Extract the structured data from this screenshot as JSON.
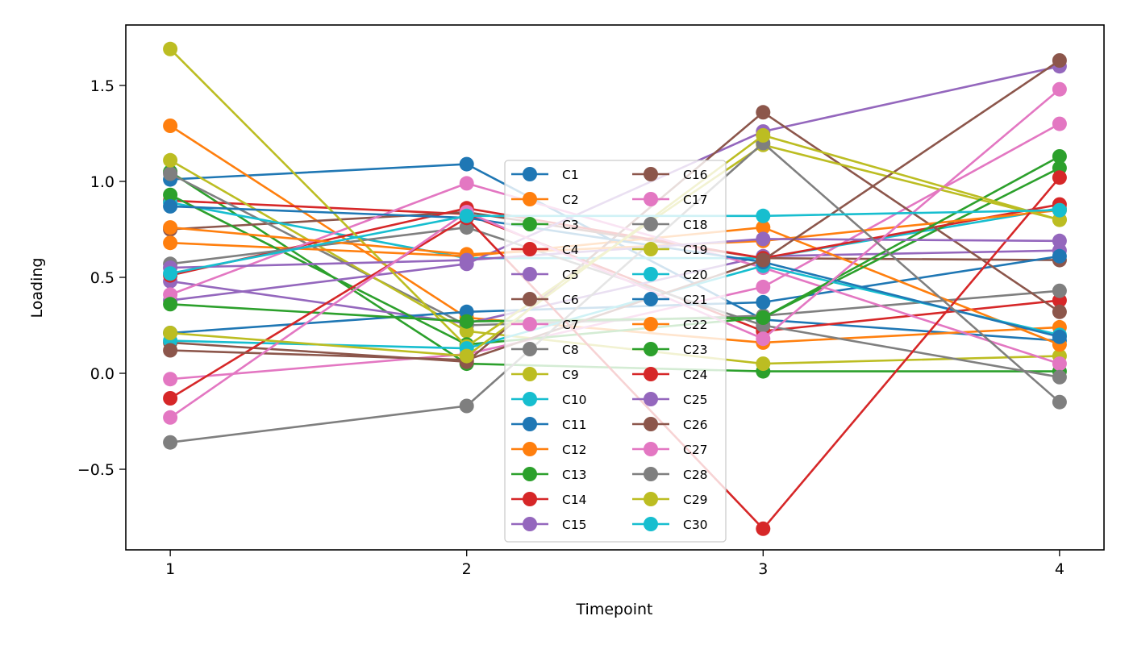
{
  "chart_data": {
    "type": "line",
    "title": "",
    "xlabel": "Timepoint",
    "ylabel": "Loading",
    "x": [
      1,
      2,
      3,
      4
    ],
    "xlim": [
      0.85,
      4.15
    ],
    "ylim": [
      -0.92,
      1.815
    ],
    "xticks": [
      "1",
      "2",
      "3",
      "4"
    ],
    "yticks": [
      {
        "value": -0.5,
        "label": "−0.5"
      },
      {
        "value": 0.0,
        "label": "0.0"
      },
      {
        "value": 0.5,
        "label": "0.5"
      },
      {
        "value": 1.0,
        "label": "1.0"
      },
      {
        "value": 1.5,
        "label": "1.5"
      }
    ],
    "grid": false,
    "legend": {
      "location": "center",
      "columns": 2
    },
    "series": [
      {
        "name": "C1",
        "color": "#1f77b4",
        "values": [
          1.01,
          1.09,
          0.28,
          0.17
        ]
      },
      {
        "name": "C2",
        "color": "#ff7f0e",
        "values": [
          1.29,
          0.29,
          0.16,
          0.24
        ]
      },
      {
        "name": "C3",
        "color": "#2ca02c",
        "values": [
          1.05,
          0.05,
          0.01,
          0.01
        ]
      },
      {
        "name": "C4",
        "color": "#d62728",
        "values": [
          0.9,
          0.83,
          0.22,
          0.38
        ]
      },
      {
        "name": "C5",
        "color": "#9467bd",
        "values": [
          0.48,
          0.26,
          0.61,
          0.64
        ]
      },
      {
        "name": "C6",
        "color": "#8c564b",
        "values": [
          0.75,
          0.84,
          0.6,
          0.59
        ]
      },
      {
        "name": "C7",
        "color": "#e377c2",
        "values": [
          -0.03,
          0.1,
          0.45,
          1.3
        ]
      },
      {
        "name": "C8",
        "color": "#7f7f7f",
        "values": [
          1.04,
          0.25,
          0.3,
          0.43
        ]
      },
      {
        "name": "C9",
        "color": "#bcbd22",
        "values": [
          1.11,
          0.22,
          0.05,
          0.09
        ]
      },
      {
        "name": "C10",
        "color": "#17becf",
        "values": [
          0.89,
          0.6,
          0.6,
          0.86
        ]
      },
      {
        "name": "C11",
        "color": "#1f77b4",
        "values": [
          0.21,
          0.32,
          0.37,
          0.61
        ]
      },
      {
        "name": "C12",
        "color": "#ff7f0e",
        "values": [
          0.68,
          0.61,
          0.76,
          0.15
        ]
      },
      {
        "name": "C13",
        "color": "#2ca02c",
        "values": [
          0.93,
          0.15,
          0.29,
          1.07
        ]
      },
      {
        "name": "C14",
        "color": "#d62728",
        "values": [
          0.51,
          0.86,
          0.6,
          0.88
        ]
      },
      {
        "name": "C15",
        "color": "#9467bd",
        "values": [
          0.38,
          0.57,
          1.26,
          1.6
        ]
      },
      {
        "name": "C16",
        "color": "#8c564b",
        "values": [
          0.16,
          0.06,
          1.36,
          0.32
        ]
      },
      {
        "name": "C17",
        "color": "#e377c2",
        "values": [
          0.41,
          0.99,
          0.55,
          0.05
        ]
      },
      {
        "name": "C18",
        "color": "#7f7f7f",
        "values": [
          0.57,
          0.76,
          0.25,
          -0.02
        ]
      },
      {
        "name": "C19",
        "color": "#bcbd22",
        "values": [
          1.69,
          0.14,
          1.19,
          0.8
        ]
      },
      {
        "name": "C20",
        "color": "#17becf",
        "values": [
          0.17,
          0.13,
          0.56,
          0.2
        ]
      },
      {
        "name": "C21",
        "color": "#1f77b4",
        "values": [
          0.87,
          0.81,
          0.58,
          0.19
        ]
      },
      {
        "name": "C22",
        "color": "#ff7f0e",
        "values": [
          0.76,
          0.62,
          0.69,
          0.85
        ]
      },
      {
        "name": "C23",
        "color": "#2ca02c",
        "values": [
          0.36,
          0.27,
          0.29,
          1.13
        ]
      },
      {
        "name": "C24",
        "color": "#d62728",
        "values": [
          -0.13,
          0.81,
          -0.81,
          1.02
        ]
      },
      {
        "name": "C25",
        "color": "#9467bd",
        "values": [
          0.55,
          0.59,
          0.7,
          0.69
        ]
      },
      {
        "name": "C26",
        "color": "#8c564b",
        "values": [
          0.12,
          0.07,
          0.59,
          1.63
        ]
      },
      {
        "name": "C27",
        "color": "#e377c2",
        "values": [
          -0.23,
          0.84,
          0.18,
          1.48
        ]
      },
      {
        "name": "C28",
        "color": "#7f7f7f",
        "values": [
          -0.36,
          -0.17,
          1.2,
          -0.15
        ]
      },
      {
        "name": "C29",
        "color": "#bcbd22",
        "values": [
          0.21,
          0.09,
          1.24,
          0.8
        ]
      },
      {
        "name": "C30",
        "color": "#17becf",
        "values": [
          0.52,
          0.82,
          0.82,
          0.85
        ]
      }
    ]
  }
}
